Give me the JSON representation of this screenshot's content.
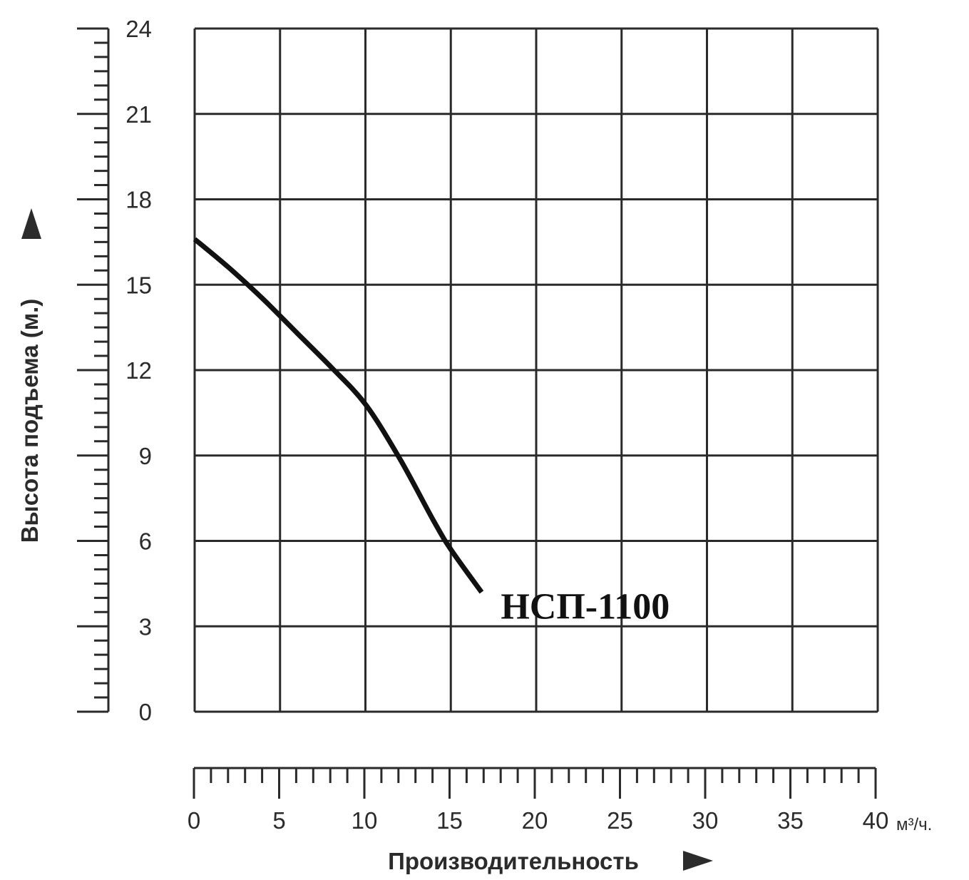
{
  "chart_data": {
    "type": "line",
    "xlabel": "Производительность",
    "ylabel": "Высота подъема (м.)",
    "x_unit": "м³/ч.",
    "xlim": [
      0,
      40
    ],
    "ylim": [
      0,
      24
    ],
    "x_ticks": [
      "0",
      "5",
      "10",
      "15",
      "20",
      "25",
      "30",
      "35",
      "40"
    ],
    "y_ticks": [
      "0",
      "3",
      "6",
      "9",
      "12",
      "15",
      "18",
      "21",
      "24"
    ],
    "grid": true,
    "series": [
      {
        "name": "НСП-1100",
        "x": [
          0,
          2,
          4,
          6,
          8,
          10,
          12,
          14,
          15,
          16.8
        ],
        "y": [
          16.6,
          15.6,
          14.5,
          13.3,
          12.1,
          10.8,
          8.9,
          6.7,
          5.7,
          4.2
        ]
      }
    ],
    "colors": {
      "grid": "#2a2a2a",
      "line": "#111111",
      "text": "#2b2b2b"
    }
  }
}
